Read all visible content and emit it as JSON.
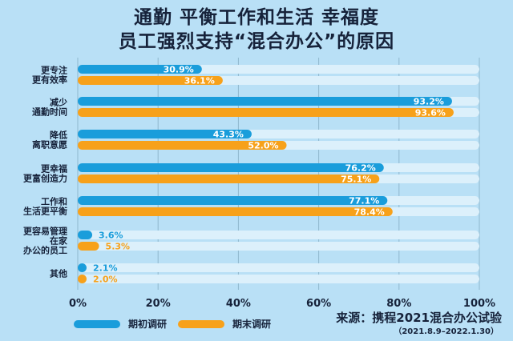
{
  "header": {
    "title_line1": "通勤 平衡工作和生活 幸福度",
    "title_line2": "员工强烈支持“混合办公”的原因"
  },
  "colors": {
    "background": "#b9e0f6",
    "series_1": "#1a9ddb",
    "series_2": "#f7a11a",
    "track": "#dcf0fb",
    "grid": "#8fb7cd",
    "label_text": "#16223a"
  },
  "chart_data": {
    "type": "bar",
    "orientation": "horizontal",
    "categories": [
      [
        "更专注",
        "更有效率"
      ],
      [
        "减少",
        "通勤时间"
      ],
      [
        "降低",
        "离职意愿"
      ],
      [
        "更幸福",
        "更富创造力"
      ],
      [
        "工作和",
        "生活更平衡"
      ],
      [
        "更容易管理",
        "在家",
        "办公的员工"
      ],
      [
        "其他"
      ]
    ],
    "series": [
      {
        "name": "期初调研",
        "values": [
          30.9,
          93.2,
          43.3,
          76.2,
          77.1,
          3.6,
          2.1
        ],
        "labels": [
          "30.9%",
          "93.2%",
          "43.3%",
          "76.2%",
          "77.1%",
          "3.6%",
          "2.1%"
        ]
      },
      {
        "name": "期末调研",
        "values": [
          36.1,
          93.6,
          52.0,
          75.1,
          78.4,
          5.3,
          2.0
        ],
        "labels": [
          "36.1%",
          "93.6%",
          "52.0%",
          "75.1%",
          "78.4%",
          "5.3%",
          "2.0%"
        ]
      }
    ],
    "x_ticks": [
      "0%",
      "20%",
      "40%",
      "60%",
      "80%",
      "100%"
    ],
    "xlim": [
      0,
      100
    ],
    "grid": true,
    "legend_position": "bottom-left"
  },
  "source": {
    "label": "来源：携程2021混合办公试验",
    "date_range": "（2021.8.9–2022.1.30）"
  }
}
